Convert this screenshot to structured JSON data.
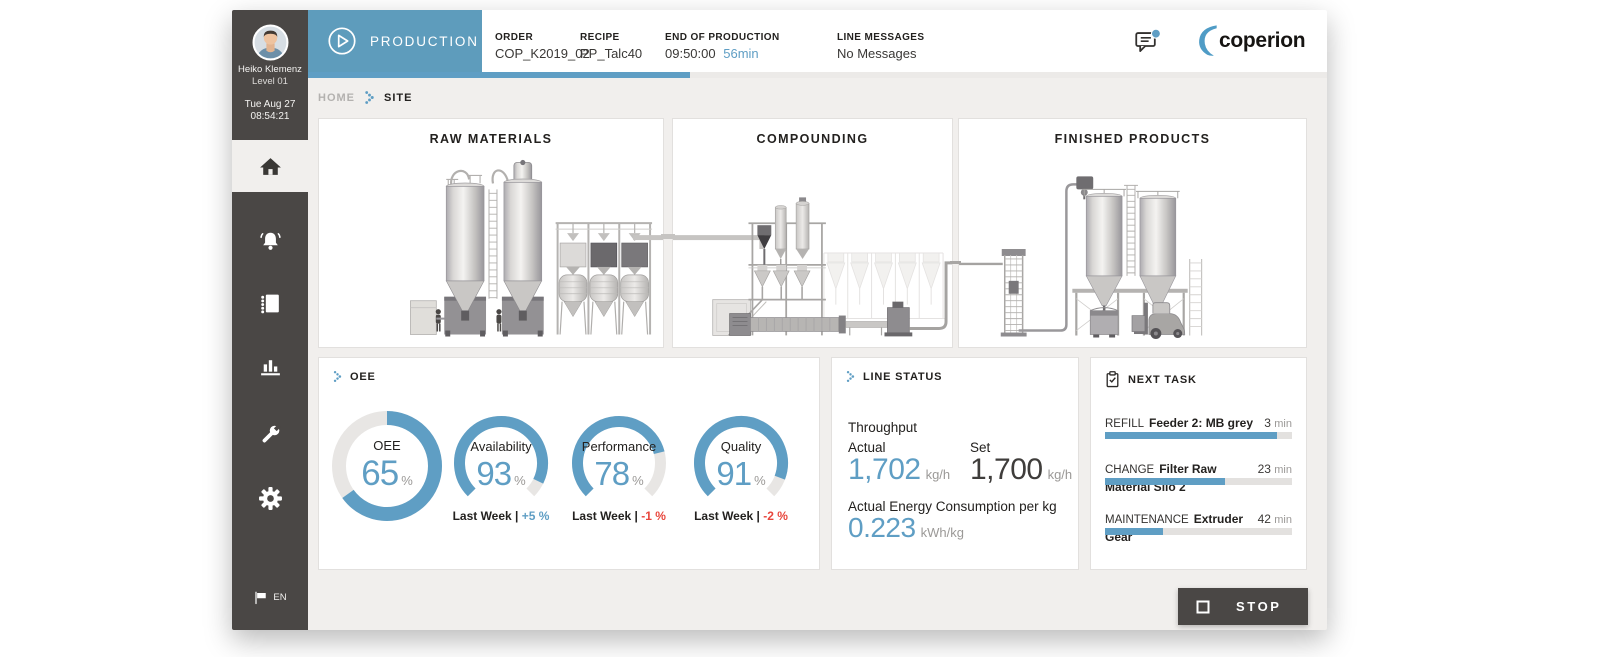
{
  "colors": {
    "accent_blue": "#5f9ec4",
    "tab_blue": "#5e9cbc",
    "dark": "#4a4745",
    "negative_red": "#e8463c",
    "gauge_track": "#e8e6e4",
    "bar_track": "#e3e1df"
  },
  "sidebar": {
    "user": {
      "name": "Heiko Klemenz",
      "level": "Level 01"
    },
    "date": "Tue Aug 27",
    "time": "08:54:21",
    "nav_icons": [
      "home",
      "alarms",
      "logbook",
      "statistics",
      "maintenance",
      "settings"
    ],
    "language": "EN"
  },
  "header": {
    "mode": "PRODUCTION",
    "order_label": "ORDER",
    "order_value": "COP_K2019_02",
    "recipe_label": "RECIPE",
    "recipe_value": "PP_Talc40",
    "end_label": "END OF PRODUCTION",
    "end_time": "09:50:00",
    "end_remaining": "56min",
    "messages_label": "LINE MESSAGES",
    "messages_value": "No Messages",
    "brand": "coperion",
    "progress_pct": 37.5
  },
  "breadcrumb": {
    "home": "HOME",
    "current": "SITE"
  },
  "plant": {
    "raw_materials": "RAW MATERIALS",
    "compounding": "COMPOUNDING",
    "finished_products": "FINISHED PRODUCTS"
  },
  "oee": {
    "title": "OEE",
    "gauges": [
      {
        "type": "donut",
        "label": "OEE",
        "value": 65,
        "unit": "%"
      },
      {
        "type": "gauge",
        "label": "Availability",
        "value": 93,
        "unit": "%",
        "footnote": "Last Week |",
        "delta": "+5 %",
        "delta_color": "#5f9ec4"
      },
      {
        "type": "gauge",
        "label": "Performance",
        "value": 78,
        "unit": "%",
        "footnote": "Last Week |",
        "delta": "-1 %",
        "delta_color": "#e8463c"
      },
      {
        "type": "gauge",
        "label": "Quality",
        "value": 91,
        "unit": "%",
        "footnote": "Last Week |",
        "delta": "-2 %",
        "delta_color": "#e8463c"
      }
    ]
  },
  "line_status": {
    "title": "LINE STATUS",
    "throughput_label": "Throughput",
    "actual_label": "Actual",
    "set_label": "Set",
    "actual_value": "1,702",
    "set_value": "1,700",
    "unit": "kg/h",
    "energy_label": "Actual Energy Consumption per kg",
    "energy_value": "0.223",
    "energy_unit": "kWh/kg"
  },
  "next_task": {
    "title": "NEXT TASK",
    "tasks": [
      {
        "type": "REFILL",
        "name": "Feeder 2: MB grey",
        "duration": "3",
        "unit": "min",
        "progress_pct": 92
      },
      {
        "type": "CHANGE",
        "name": "Filter Raw Material Silo 2",
        "duration": "23",
        "unit": "min",
        "progress_pct": 64
      },
      {
        "type": "MAINTENANCE",
        "name": "Extruder Gear",
        "duration": "42",
        "unit": "min",
        "progress_pct": 31
      }
    ]
  },
  "footer": {
    "stop": "STOP"
  }
}
